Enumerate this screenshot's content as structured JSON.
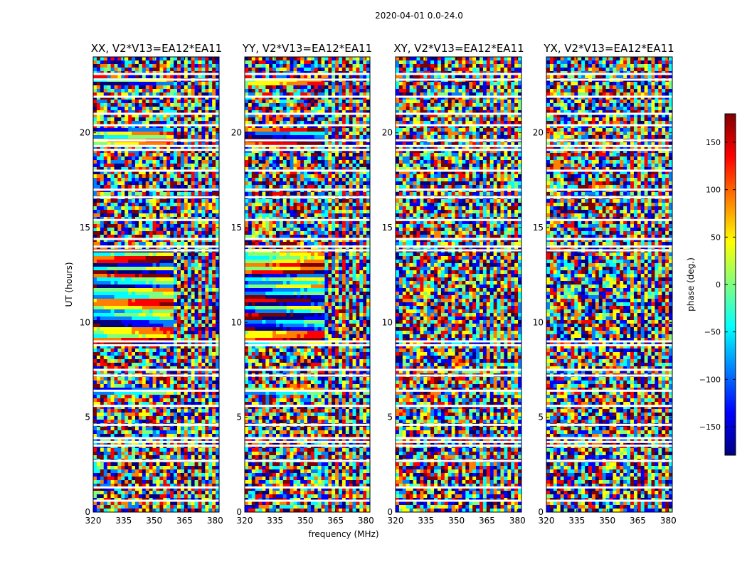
{
  "figure": {
    "suptitle": "2020-04-01 0.0-24.0"
  },
  "chart_data": {
    "type": "heatmap",
    "xlabel": "frequency (MHz)",
    "ylabel": "UT (hours)",
    "xlim": [
      320,
      382
    ],
    "ylim": [
      0,
      24
    ],
    "xticks": [
      320,
      335,
      350,
      365,
      380
    ],
    "yticks": [
      0,
      5,
      10,
      15,
      20
    ],
    "panels": [
      {
        "title": "XX, V2*V13=EA12*EA11",
        "coherent": true
      },
      {
        "title": "YY, V2*V13=EA12*EA11",
        "coherent": true
      },
      {
        "title": "XY, V2*V13=EA12*EA11",
        "coherent": false
      },
      {
        "title": "YX, V2*V13=EA12*EA11",
        "coherent": false
      }
    ],
    "flagged_hours": [
      23.1,
      22.8,
      21.9,
      21.0,
      20.4,
      19.6,
      19.3,
      19.1,
      18.0,
      17.0,
      16.6,
      15.4,
      14.4,
      14.0,
      13.8,
      9.0,
      8.8,
      7.5,
      7.2,
      6.4,
      5.6,
      4.6,
      3.9,
      3.7,
      3.5,
      2.7,
      1.3,
      0.6
    ],
    "colorbar": {
      "label": "phase (deg.)",
      "range": [
        -180,
        180
      ],
      "ticks": [
        -150,
        -100,
        -50,
        0,
        50,
        100,
        150
      ],
      "colormap": [
        "#00007f",
        "#0000ff",
        "#007fff",
        "#00ffff",
        "#7fff7f",
        "#ffff00",
        "#ff7f00",
        "#ff0000",
        "#7f0000"
      ]
    }
  }
}
